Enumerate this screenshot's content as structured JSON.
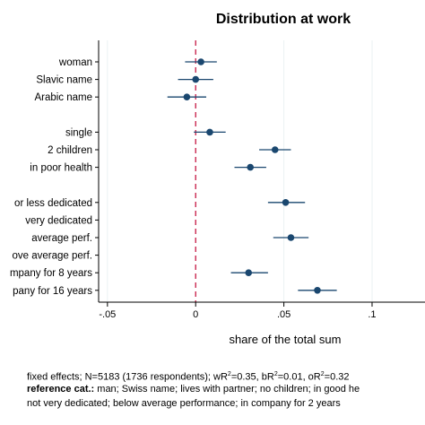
{
  "chart_data": {
    "type": "scatter",
    "title": "Distribution at work",
    "xlabel": "share of the total sum",
    "ylabel": "",
    "xlim": [
      -0.055,
      0.13
    ],
    "x_ticks": [
      -0.05,
      0,
      0.05,
      0.1
    ],
    "x_tick_labels": [
      "-.05",
      "0",
      ".05",
      ".1"
    ],
    "reference_line": 0,
    "grid": "vertical",
    "points": [
      {
        "label": "woman",
        "value": 0.003,
        "ci": [
          -0.006,
          0.012
        ]
      },
      {
        "label": "Slavic name",
        "value": 0.0,
        "ci": [
          -0.01,
          0.01
        ]
      },
      {
        "label": "Arabic name",
        "value": -0.005,
        "ci": [
          -0.016,
          0.006
        ]
      },
      {
        "label": "",
        "value": null,
        "ci": null
      },
      {
        "label": "single",
        "value": 0.008,
        "ci": [
          -0.001,
          0.017
        ]
      },
      {
        "label": "2 children",
        "value": 0.045,
        "ci": [
          0.036,
          0.054
        ]
      },
      {
        "label": "in poor health",
        "value": 0.031,
        "ci": [
          0.022,
          0.04
        ]
      },
      {
        "label": "",
        "value": null,
        "ci": null
      },
      {
        "label": "or less dedicated",
        "value": 0.051,
        "ci": [
          0.041,
          0.062
        ]
      },
      {
        "label": "very dedicated",
        "value": null,
        "ci": null
      },
      {
        "label": "average perf.",
        "value": 0.054,
        "ci": [
          0.044,
          0.064
        ]
      },
      {
        "label": "ove average perf.",
        "value": null,
        "ci": null
      },
      {
        "label": "mpany for 8 years",
        "value": 0.03,
        "ci": [
          0.02,
          0.041
        ]
      },
      {
        "label": "pany for 16 years",
        "value": 0.069,
        "ci": [
          0.058,
          0.08
        ]
      }
    ]
  },
  "colors": {
    "marker": "#1a476f",
    "reference_line": "#c10534",
    "grid": "#eaf2f3",
    "axis": "#000000"
  },
  "notes": {
    "line1": "fixed effects; N=5183 (1736 respondents); wR",
    "line1_sup1": "2",
    "line1_mid1": "=0.35, bR",
    "line1_sup2": "2",
    "line1_mid2": "=0.01, oR",
    "line1_sup3": "2",
    "line1_end": "=0.32",
    "line2_bold": "reference cat.:",
    "line2_rest": " man; Swiss name; lives with partner; no children; in good he",
    "line3": "not very dedicated; below average performance; in company for 2 years"
  }
}
